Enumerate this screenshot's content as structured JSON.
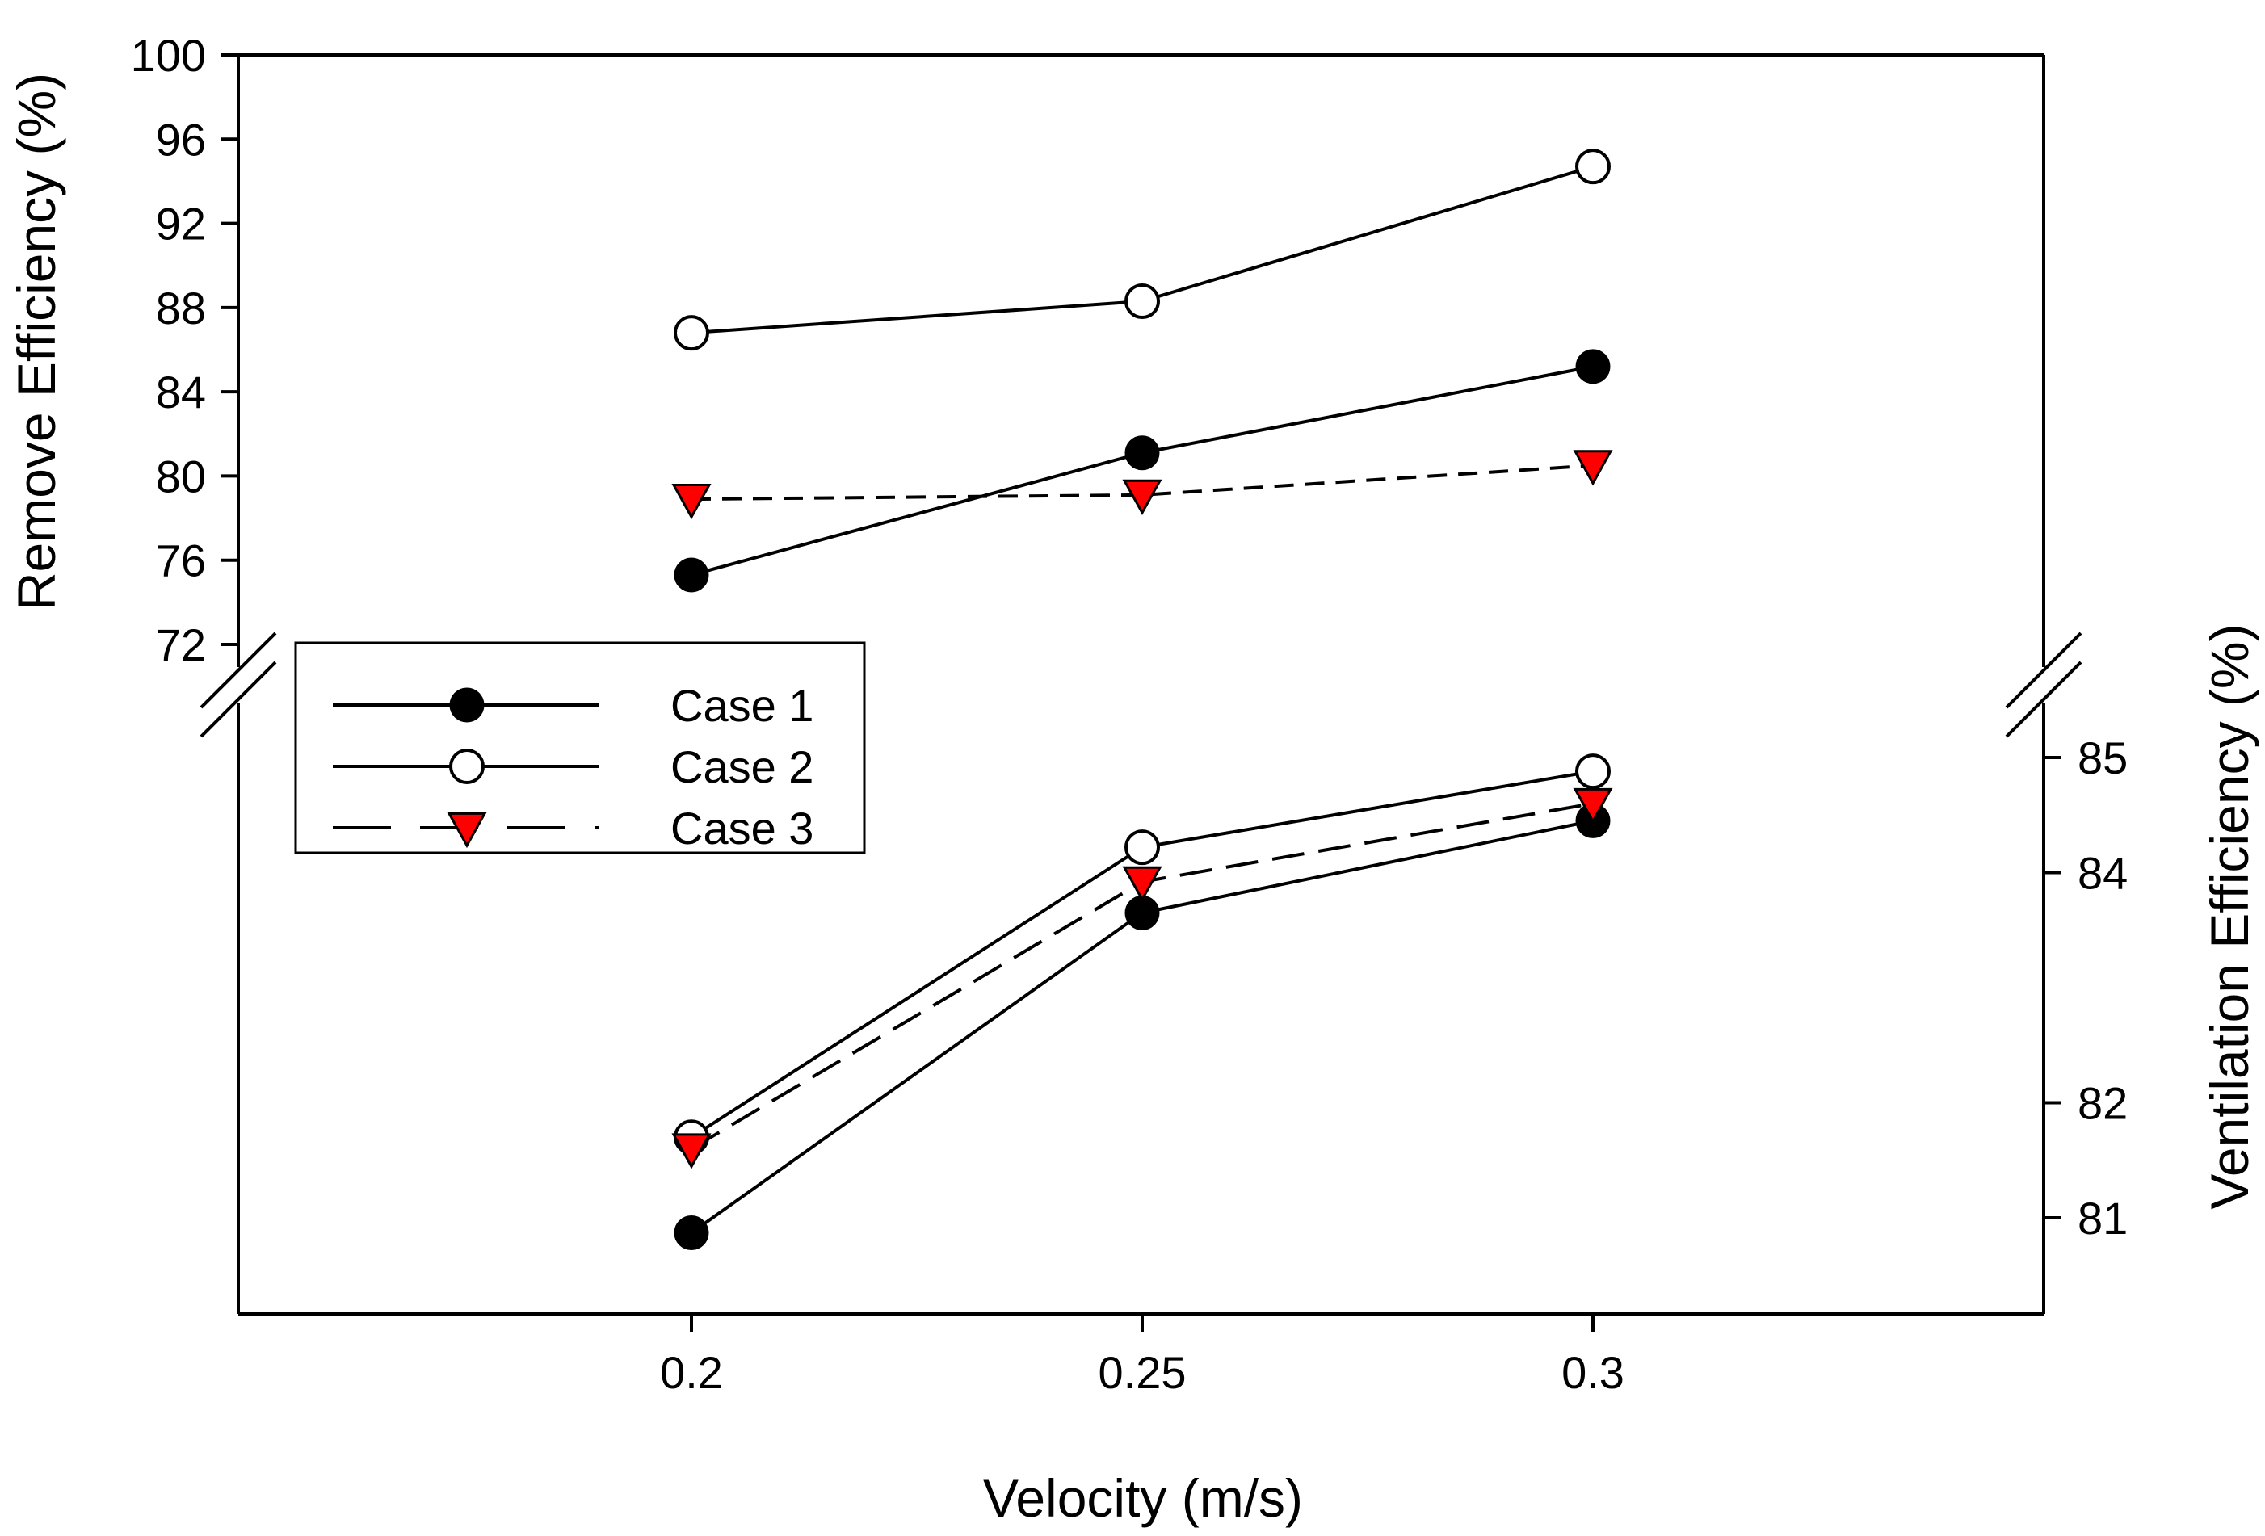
{
  "chart_data": {
    "type": "line",
    "title": "",
    "xlabel": "Velocity (m/s)",
    "x": [
      0.2,
      0.25,
      0.3
    ],
    "x_tick_labels": [
      "0.2",
      "0.25",
      "0.3"
    ],
    "upper_panel": {
      "ylabel": "Remove Efficiency (%)",
      "ylim": [
        72,
        100
      ],
      "y_ticks": [
        72,
        76,
        80,
        84,
        88,
        92,
        96,
        100
      ],
      "y_tick_labels": [
        "72",
        "76",
        "80",
        "84",
        "88",
        "92",
        "96",
        "100"
      ],
      "axis_side": "left",
      "series": [
        {
          "name": "Case 1",
          "values": [
            75.3,
            81.1,
            85.2
          ]
        },
        {
          "name": "Case 2",
          "values": [
            86.8,
            88.3,
            94.7
          ]
        },
        {
          "name": "Case 3",
          "values": [
            78.9,
            79.1,
            80.5
          ]
        }
      ]
    },
    "lower_panel": {
      "ylabel": "Ventilation Efficiency (%)",
      "axis_side": "right",
      "y_ticks": [
        81,
        82,
        84,
        85
      ],
      "y_tick_labels": [
        "81",
        "82",
        "84",
        "85"
      ],
      "series": [
        {
          "name": "Case 1",
          "values": [
            80.87,
            83.65,
            84.45
          ]
        },
        {
          "name": "Case 2",
          "values": [
            81.7,
            84.22,
            84.88
          ]
        },
        {
          "name": "Case 3",
          "values": [
            81.6,
            83.92,
            84.6
          ]
        }
      ]
    },
    "legend": {
      "placement": "center-left",
      "entries": [
        {
          "name": "Case 1",
          "marker": "filled-circle",
          "line": "solid"
        },
        {
          "name": "Case 2",
          "marker": "open-circle",
          "line": "solid"
        },
        {
          "name": "Case 3",
          "marker": "red-down-triangle",
          "line": "dashed"
        }
      ]
    },
    "colors": {
      "case3_marker": "#ff0000",
      "line": "#000000"
    }
  }
}
